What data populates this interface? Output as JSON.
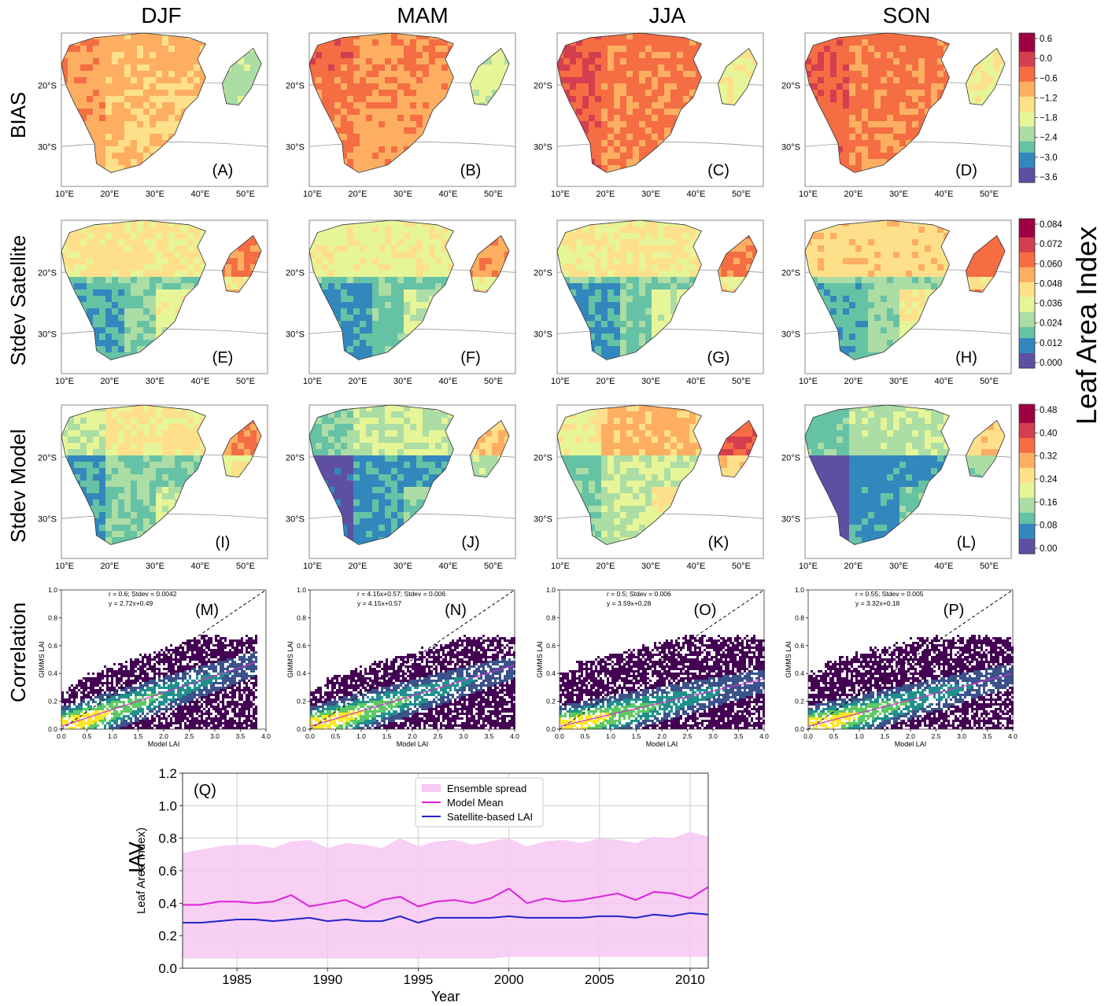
{
  "columns": [
    "DJF",
    "MAM",
    "JJA",
    "SON"
  ],
  "rows": [
    "BIAS",
    "Stdev Satellite",
    "Stdev Model",
    "Correlation",
    "IAV"
  ],
  "side_title": "Leaf Area Index",
  "map_lat_labels": [
    "20°S",
    "30°S"
  ],
  "map_lon_labels": [
    "10°E",
    "20°E",
    "30°E",
    "40°E",
    "50°E"
  ],
  "map_panel_labels": [
    [
      "(A)",
      "(B)",
      "(C)",
      "(D)"
    ],
    [
      "(E)",
      "(F)",
      "(G)",
      "(H)"
    ],
    [
      "(I)",
      "(J)",
      "(K)",
      "(L)"
    ]
  ],
  "colors": {
    "colormap": [
      "#5e4fa2",
      "#3288bd",
      "#66c2a5",
      "#abdda4",
      "#e6f598",
      "#fee08b",
      "#fdae61",
      "#f46d43",
      "#d53e4f",
      "#9e0142"
    ],
    "density": [
      "#440154",
      "#3b528b",
      "#21908d",
      "#5dc963",
      "#fde725"
    ],
    "ensemble": "#f7c8f2",
    "model_mean": "#dd22dd",
    "satellite": "#2222cc"
  },
  "colorbars": [
    {
      "ticks": [
        "0.6",
        "0.0",
        "−0.6",
        "−1.2",
        "−1.8",
        "−2.4",
        "−3.0",
        "−3.6"
      ]
    },
    {
      "ticks": [
        "0.084",
        "0.072",
        "0.060",
        "0.048",
        "0.036",
        "0.024",
        "0.012",
        "0.000"
      ]
    },
    {
      "ticks": [
        "0.48",
        "0.40",
        "0.32",
        "0.24",
        "0.16",
        "0.08",
        "0.00"
      ]
    }
  ],
  "map_fields": [
    [
      0.7,
      0.76,
      0.8,
      0.8
    ],
    [
      0.3,
      0.26,
      0.28,
      0.34
    ],
    [
      0.3,
      0.18,
      0.4,
      0.16
    ]
  ],
  "chart_data": [
    {
      "type": "heatmap",
      "panel": "(M)",
      "xlabel": "Model LAI",
      "ylabel": "GIMMS LAI",
      "xlim": [
        0,
        4
      ],
      "ylim": [
        0,
        1
      ],
      "xticks": [
        "0.0",
        "0.5",
        "1.0",
        "1.5",
        "2.0",
        "2.5",
        "3.0",
        "3.5",
        "4.0"
      ],
      "yticks": [
        "0.0",
        "0.2",
        "0.4",
        "0.6",
        "0.8",
        "1.0"
      ],
      "annotation_line1": "r = 0.6;  Stdev = 0.0042",
      "annotation_line2": "y = 2.72x+0.49",
      "fit": {
        "x": [
          0,
          3.8
        ],
        "y": [
          0.02,
          0.48
        ]
      },
      "identity": {
        "x": [
          0,
          4
        ],
        "y": [
          0,
          1
        ]
      }
    },
    {
      "type": "heatmap",
      "panel": "(N)",
      "xlabel": "Model LAI",
      "ylabel": "GIMMS LAI",
      "xlim": [
        0,
        4
      ],
      "ylim": [
        0,
        1
      ],
      "xticks": [
        "0.0",
        "0.5",
        "1.0",
        "1.5",
        "2.0",
        "2.5",
        "3.0",
        "3.5",
        "4.0"
      ],
      "yticks": [
        "0.0",
        "0.2",
        "0.4",
        "0.6",
        "0.8",
        "1.0"
      ],
      "annotation_line1": "r = 4.15x+0.57;  Stdev = 0.006",
      "annotation_line2": "y = 4.15x+0.57",
      "fit": {
        "x": [
          0,
          4
        ],
        "y": [
          0.02,
          0.46
        ]
      },
      "identity": {
        "x": [
          0,
          4
        ],
        "y": [
          0,
          1
        ]
      }
    },
    {
      "type": "heatmap",
      "panel": "(O)",
      "xlabel": "Model LAI",
      "ylabel": "GIMMS LAI",
      "xlim": [
        0,
        4
      ],
      "ylim": [
        0,
        1
      ],
      "xticks": [
        "0.0",
        "0.5",
        "1.0",
        "1.5",
        "2.0",
        "2.5",
        "3.0",
        "3.5",
        "4.0"
      ],
      "yticks": [
        "0.0",
        "0.2",
        "0.4",
        "0.6",
        "0.8",
        "1.0"
      ],
      "annotation_line1": "r = 0.5;  Stdev = 0.006",
      "annotation_line2": "y = 3.59x+0.28",
      "fit": {
        "x": [
          0,
          4
        ],
        "y": [
          0.02,
          0.36
        ]
      },
      "identity": {
        "x": [
          0,
          4
        ],
        "y": [
          0,
          1
        ]
      }
    },
    {
      "type": "heatmap",
      "panel": "(P)",
      "xlabel": "Model LAI",
      "ylabel": "GIMMS LAI",
      "xlim": [
        0,
        4
      ],
      "ylim": [
        0,
        1
      ],
      "xticks": [
        "0.0",
        "0.5",
        "1.0",
        "1.5",
        "2.0",
        "2.5",
        "3.0",
        "3.5",
        "4.0"
      ],
      "yticks": [
        "0.0",
        "0.2",
        "0.4",
        "0.6",
        "0.8",
        "1.0"
      ],
      "annotation_line1": "r = 0.55;  Stdev = 0.005",
      "annotation_line2": "y = 3.32x+0.18",
      "fit": {
        "x": [
          0,
          4
        ],
        "y": [
          0.02,
          0.4
        ]
      },
      "identity": {
        "x": [
          0,
          4
        ],
        "y": [
          0,
          1
        ]
      }
    },
    {
      "type": "line",
      "panel": "(Q)",
      "xlabel": "Year",
      "ylabel": "Leaf Area Index)",
      "xlim": [
        1982,
        2011
      ],
      "ylim": [
        0,
        1.2
      ],
      "grid": true,
      "legend": "top-center",
      "xticks": [
        1985,
        1990,
        1995,
        2000,
        2005,
        2010
      ],
      "yticks": [
        "0.0",
        "0.2",
        "0.4",
        "0.6",
        "0.8",
        "1.0",
        "1.2"
      ],
      "x": [
        1982,
        1983,
        1984,
        1985,
        1986,
        1987,
        1988,
        1989,
        1990,
        1991,
        1992,
        1993,
        1994,
        1995,
        1996,
        1997,
        1998,
        1999,
        2000,
        2001,
        2002,
        2003,
        2004,
        2005,
        2006,
        2007,
        2008,
        2009,
        2010,
        2011
      ],
      "series": [
        {
          "name": "Ensemble spread",
          "kind": "band",
          "upper": [
            0.71,
            0.73,
            0.75,
            0.76,
            0.76,
            0.74,
            0.78,
            0.79,
            0.74,
            0.77,
            0.76,
            0.74,
            0.8,
            0.75,
            0.78,
            0.79,
            0.76,
            0.78,
            0.8,
            0.75,
            0.78,
            0.79,
            0.77,
            0.8,
            0.79,
            0.77,
            0.81,
            0.8,
            0.84,
            0.81
          ],
          "lower": [
            0.06,
            0.06,
            0.06,
            0.06,
            0.06,
            0.06,
            0.06,
            0.06,
            0.06,
            0.06,
            0.06,
            0.06,
            0.06,
            0.06,
            0.06,
            0.06,
            0.06,
            0.06,
            0.07,
            0.07,
            0.07,
            0.07,
            0.07,
            0.07,
            0.07,
            0.07,
            0.07,
            0.07,
            0.07,
            0.07
          ]
        },
        {
          "name": "Model Mean",
          "values": [
            0.39,
            0.39,
            0.41,
            0.41,
            0.4,
            0.41,
            0.45,
            0.38,
            0.4,
            0.42,
            0.37,
            0.42,
            0.44,
            0.38,
            0.41,
            0.42,
            0.4,
            0.43,
            0.49,
            0.4,
            0.43,
            0.41,
            0.42,
            0.44,
            0.46,
            0.42,
            0.47,
            0.46,
            0.43,
            0.5
          ]
        },
        {
          "name": "Satellite-based LAI",
          "values": [
            0.28,
            0.28,
            0.29,
            0.3,
            0.3,
            0.29,
            0.3,
            0.31,
            0.29,
            0.3,
            0.29,
            0.29,
            0.32,
            0.28,
            0.31,
            0.31,
            0.31,
            0.31,
            0.32,
            0.31,
            0.31,
            0.31,
            0.31,
            0.32,
            0.32,
            0.31,
            0.33,
            0.32,
            0.34,
            0.33
          ]
        }
      ]
    }
  ]
}
